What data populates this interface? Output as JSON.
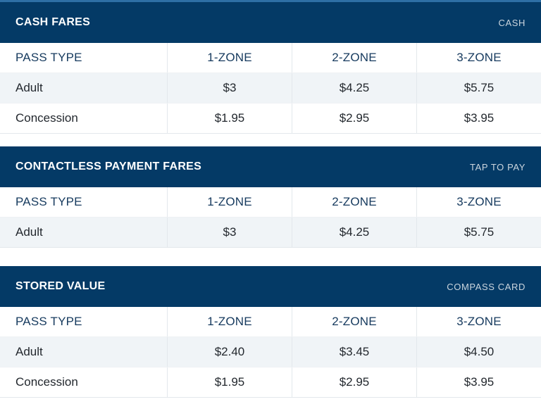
{
  "colors": {
    "header_bg": "#043A66",
    "top_accent": "#2E6FA5",
    "alt_row_bg": "#F0F4F7",
    "header_text": "#163A5E",
    "body_text": "#23282E",
    "divider": "#E3E8EC",
    "badge_text": "#CBD5DE"
  },
  "sections": [
    {
      "title": "CASH FARES",
      "badge": "CASH",
      "columns": [
        "PASS TYPE",
        "1-ZONE",
        "2-ZONE",
        "3-ZONE"
      ],
      "rows": [
        {
          "label": "Adult",
          "values": [
            "$3",
            "$4.25",
            "$5.75"
          ]
        },
        {
          "label": "Concession",
          "values": [
            "$1.95",
            "$2.95",
            "$3.95"
          ]
        }
      ]
    },
    {
      "title": "CONTACTLESS PAYMENT FARES",
      "badge": "TAP TO PAY",
      "columns": [
        "PASS TYPE",
        "1-ZONE",
        "2-ZONE",
        "3-ZONE"
      ],
      "rows": [
        {
          "label": "Adult",
          "values": [
            "$3",
            "$4.25",
            "$5.75"
          ]
        }
      ]
    },
    {
      "title": "STORED VALUE",
      "badge": "COMPASS CARD",
      "columns": [
        "PASS TYPE",
        "1-ZONE",
        "2-ZONE",
        "3-ZONE"
      ],
      "rows": [
        {
          "label": "Adult",
          "values": [
            "$2.40",
            "$3.45",
            "$4.50"
          ]
        },
        {
          "label": "Concession",
          "values": [
            "$1.95",
            "$2.95",
            "$3.95"
          ]
        }
      ]
    }
  ]
}
